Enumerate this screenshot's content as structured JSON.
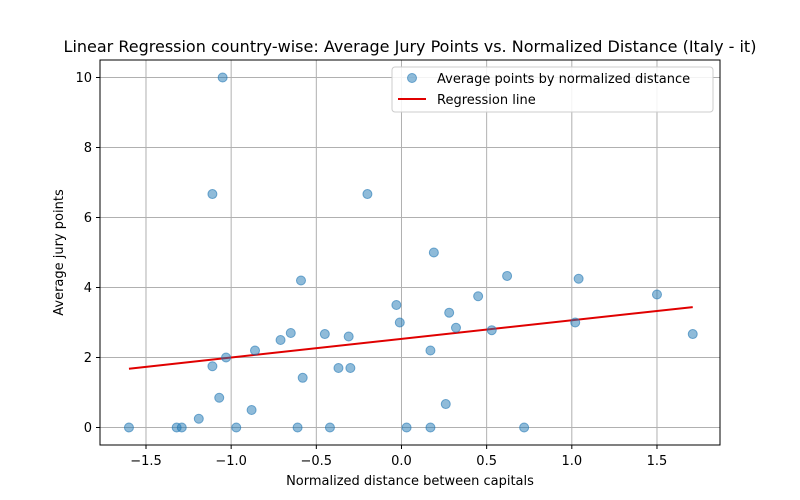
{
  "chart_data": {
    "type": "scatter",
    "title": "Linear Regression country-wise: Average Jury Points vs. Normalized Distance (Italy - it)",
    "xlabel": "Normalized distance between capitals",
    "ylabel": "Average jury points",
    "xlim": [
      -1.77,
      1.87
    ],
    "ylim": [
      -0.5,
      10.5
    ],
    "xticks": [
      -1.5,
      -1.0,
      -0.5,
      0.0,
      0.5,
      1.0,
      1.5
    ],
    "xtick_labels": [
      "−1.5",
      "−1.0",
      "−0.5",
      "0.0",
      "0.5",
      "1.0",
      "1.5"
    ],
    "yticks": [
      0,
      2,
      4,
      6,
      8,
      10
    ],
    "ytick_labels": [
      "0",
      "2",
      "4",
      "6",
      "8",
      "10"
    ],
    "grid": true,
    "legend_position": "top-right",
    "series": [
      {
        "name": "Average points by normalized distance",
        "type": "scatter",
        "color": "#1f77b4",
        "points": [
          [
            -1.6,
            0
          ],
          [
            -1.32,
            0
          ],
          [
            -1.29,
            0
          ],
          [
            -1.19,
            0.25
          ],
          [
            -1.11,
            6.67
          ],
          [
            -1.11,
            1.75
          ],
          [
            -1.07,
            0.85
          ],
          [
            -1.05,
            10
          ],
          [
            -1.03,
            2.0
          ],
          [
            -0.97,
            0
          ],
          [
            -0.88,
            0.5
          ],
          [
            -0.86,
            2.2
          ],
          [
            -0.71,
            2.5
          ],
          [
            -0.65,
            2.7
          ],
          [
            -0.61,
            0
          ],
          [
            -0.59,
            4.2
          ],
          [
            -0.58,
            1.42
          ],
          [
            -0.45,
            2.67
          ],
          [
            -0.42,
            0
          ],
          [
            -0.37,
            1.7
          ],
          [
            -0.31,
            2.6
          ],
          [
            -0.3,
            1.7
          ],
          [
            -0.2,
            6.67
          ],
          [
            -0.03,
            3.5
          ],
          [
            -0.01,
            3.0
          ],
          [
            0.03,
            0
          ],
          [
            0.17,
            2.2
          ],
          [
            0.17,
            0
          ],
          [
            0.19,
            5.0
          ],
          [
            0.26,
            0.67
          ],
          [
            0.28,
            3.28
          ],
          [
            0.32,
            2.85
          ],
          [
            0.45,
            3.75
          ],
          [
            0.53,
            2.78
          ],
          [
            0.62,
            4.33
          ],
          [
            0.72,
            0
          ],
          [
            1.02,
            3.0
          ],
          [
            1.04,
            4.25
          ],
          [
            1.5,
            3.8
          ],
          [
            1.71,
            2.67
          ]
        ]
      },
      {
        "name": "Regression line",
        "type": "line",
        "color": "#e00000",
        "points": [
          [
            -1.6,
            1.68
          ],
          [
            1.71,
            3.44
          ]
        ]
      }
    ]
  }
}
